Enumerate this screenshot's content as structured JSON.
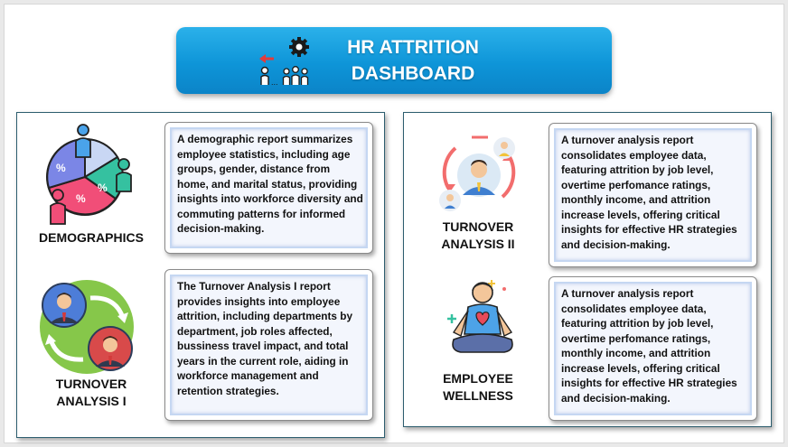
{
  "header": {
    "title_line1": "HR ATTRITION",
    "title_line2": "DASHBOARD",
    "icon": "hr-attrition-icon"
  },
  "sections": {
    "demographics": {
      "label": "DEMOGRAPHICS",
      "icon": "demographics-pie-icon",
      "description": "A demographic report summarizes employee statistics, including age groups, gender, distance from home, and marital status, providing insights into workforce diversity and commuting patterns for informed decision-making."
    },
    "turnover1": {
      "label_line1": "TURNOVER",
      "label_line2": "ANALYSIS I",
      "icon": "turnover-cycle-icon",
      "description": "The Turnover Analysis I report provides insights into employee attrition, including departments by department, job roles affected, bussiness travel impact, and total years in the current role, aiding in workforce management and retention strategies."
    },
    "turnover2": {
      "label_line1": "TURNOVER",
      "label_line2": "ANALYSIS II",
      "icon": "employee-rotation-icon",
      "description": "A turnover analysis report consolidates employee data, featuring attrition by job level, overtime perfomance ratings, monthly income, and attrition increase levels, offering critical insights for effective HR strategies and decision-making."
    },
    "wellness": {
      "label_line1": "EMPLOYEE",
      "label_line2": "WELLNESS",
      "icon": "meditation-wellness-icon",
      "description": "A turnover analysis report consolidates employee data, featuring attrition by job level, overtime perfomance ratings, monthly income, and attrition increase levels, offering critical insights for effective HR strategies and decision-making."
    }
  },
  "colors": {
    "banner": "#0e95d8",
    "panel_border": "#2c5d6e",
    "card_fill": "#f3f6fd"
  }
}
